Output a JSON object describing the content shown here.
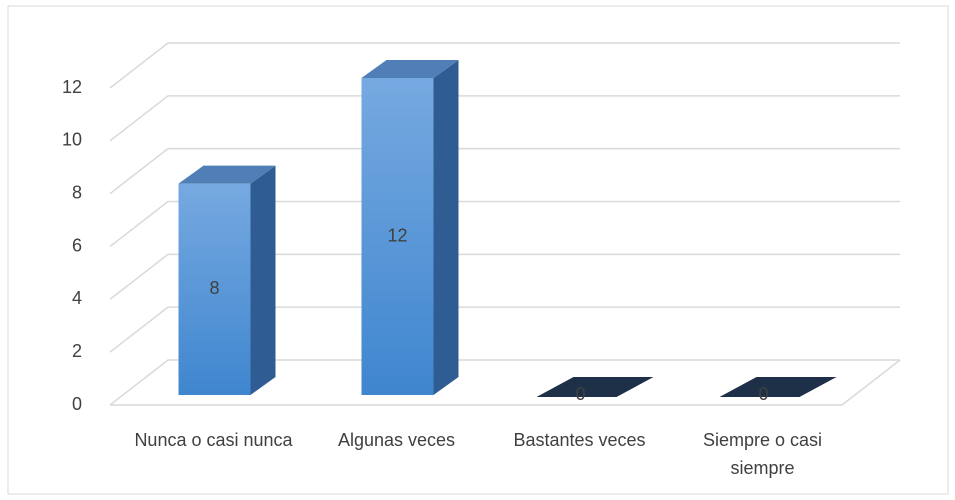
{
  "chart_data": {
    "type": "bar3d",
    "categories": [
      "Nunca o casi nunca",
      "Algunas veces",
      "Bastantes veces",
      "Siempre o casi siempre"
    ],
    "values": [
      8,
      12,
      0,
      0
    ],
    "color": "#5b9bd5",
    "ylim": [
      0,
      12
    ],
    "yticks": [
      0,
      2,
      4,
      6,
      8,
      10,
      12
    ],
    "grid": true
  }
}
